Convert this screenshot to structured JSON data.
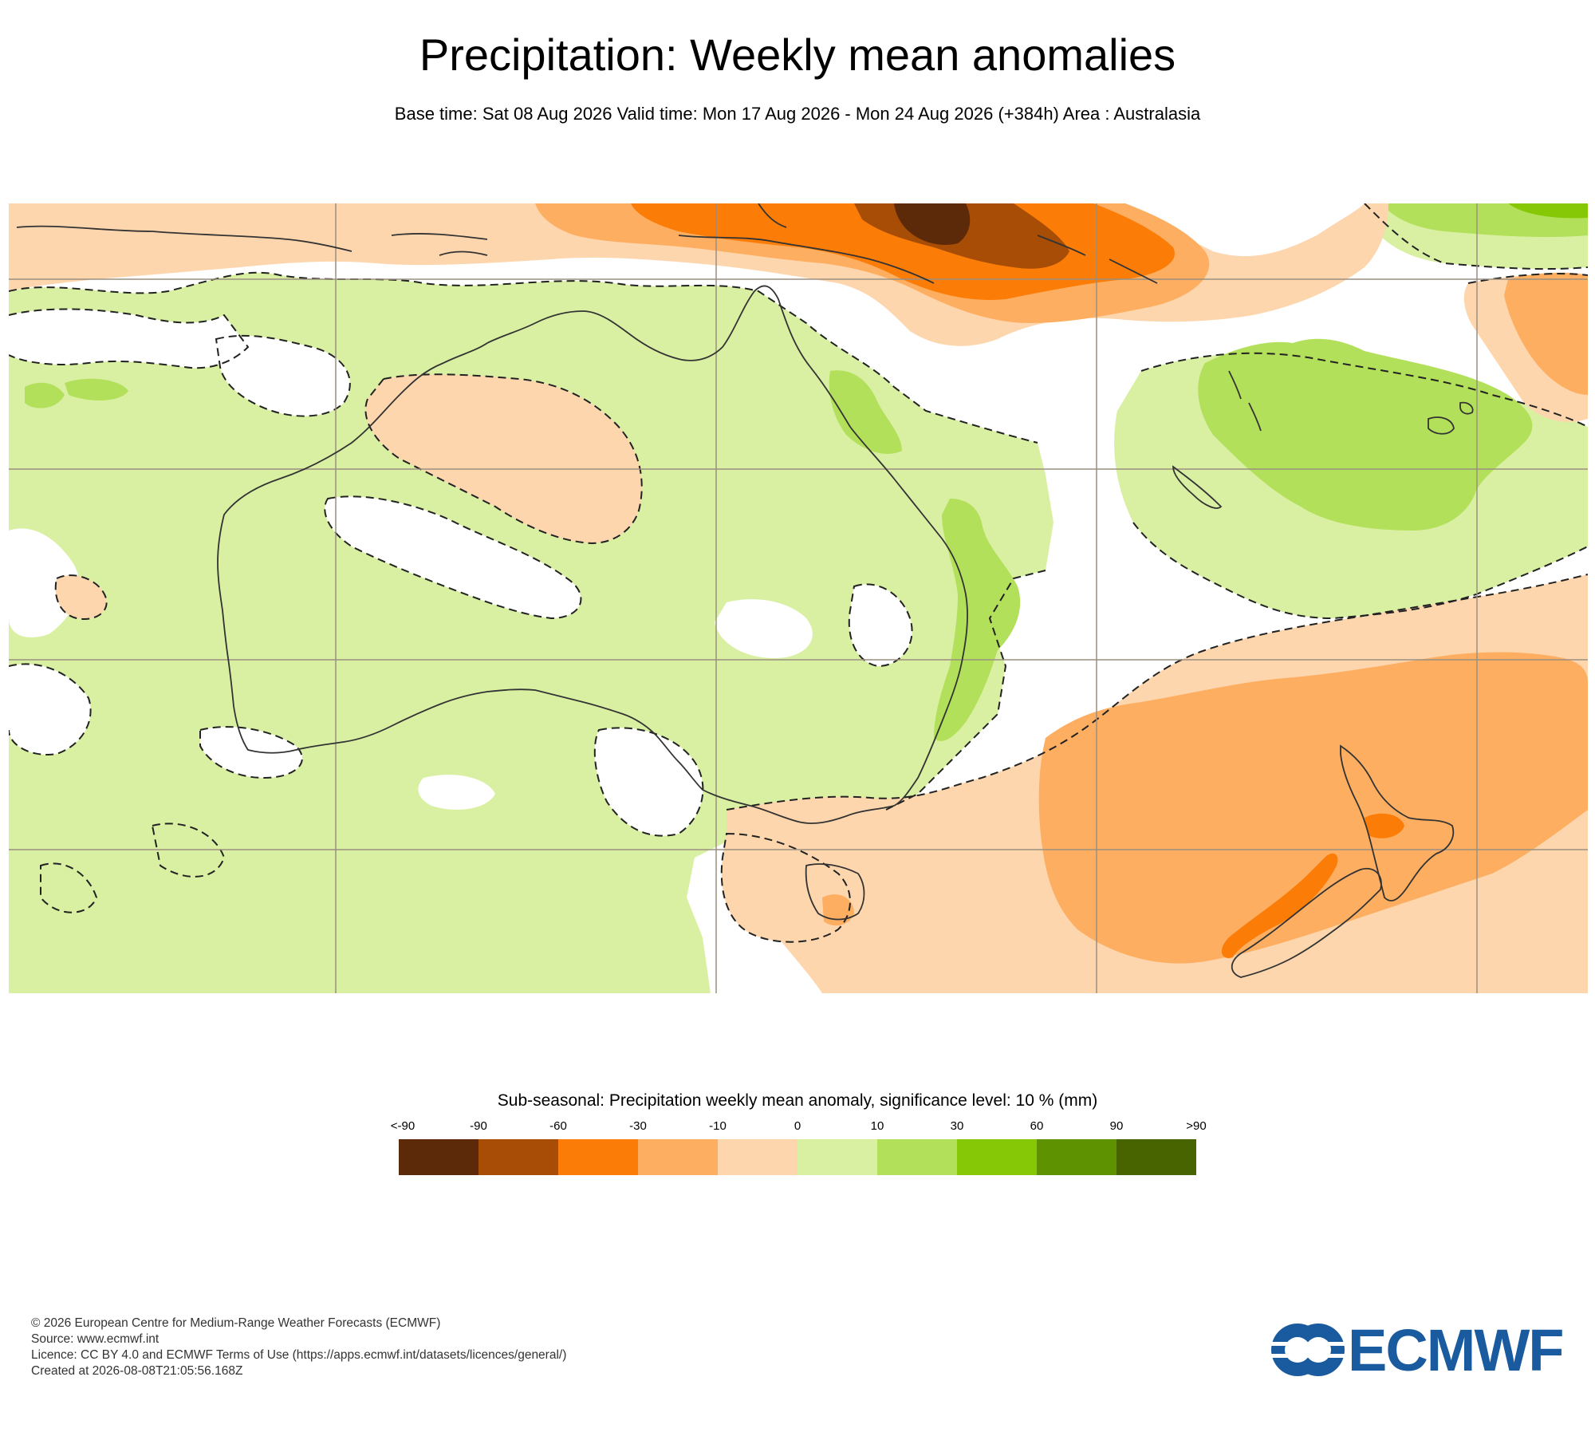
{
  "header": {
    "title": "Precipitation: Weekly mean anomalies",
    "subtitle": "Base time: Sat 08 Aug 2026 Valid time: Mon 17 Aug 2026 - Mon 24 Aug 2026 (+384h) Area : Australasia"
  },
  "legend": {
    "title": "Sub-seasonal: Precipitation weekly mean anomaly, significance level: 10 % (mm)",
    "ticks": [
      "<-90",
      "-90",
      "-60",
      "-30",
      "-10",
      "0",
      "10",
      "30",
      "60",
      "90",
      ">90"
    ],
    "colors": [
      "#5c2a08",
      "#a84d05",
      "#fb7c06",
      "#fdae61",
      "#fed6ad",
      "#d9f0a3",
      "#b3e05a",
      "#86c805",
      "#5e9200",
      "#476400"
    ]
  },
  "map": {
    "region": "Australasia",
    "land_outline_color": "#333333",
    "gridline_color": "#9a8f80",
    "significance_contour": "dashed"
  },
  "footer": {
    "line1": "© 2026 European Centre for Medium-Range Weather Forecasts (ECMWF)",
    "line2": "Source: www.ecmwf.int",
    "line3": "Licence: CC BY 4.0 and ECMWF Terms of Use (https://apps.ecmwf.int/datasets/licences/general/)",
    "line4": "Created at 2026-08-08T21:05:56.168Z"
  },
  "logo": {
    "text": "ECMWF",
    "color": "#1a5a9e"
  }
}
